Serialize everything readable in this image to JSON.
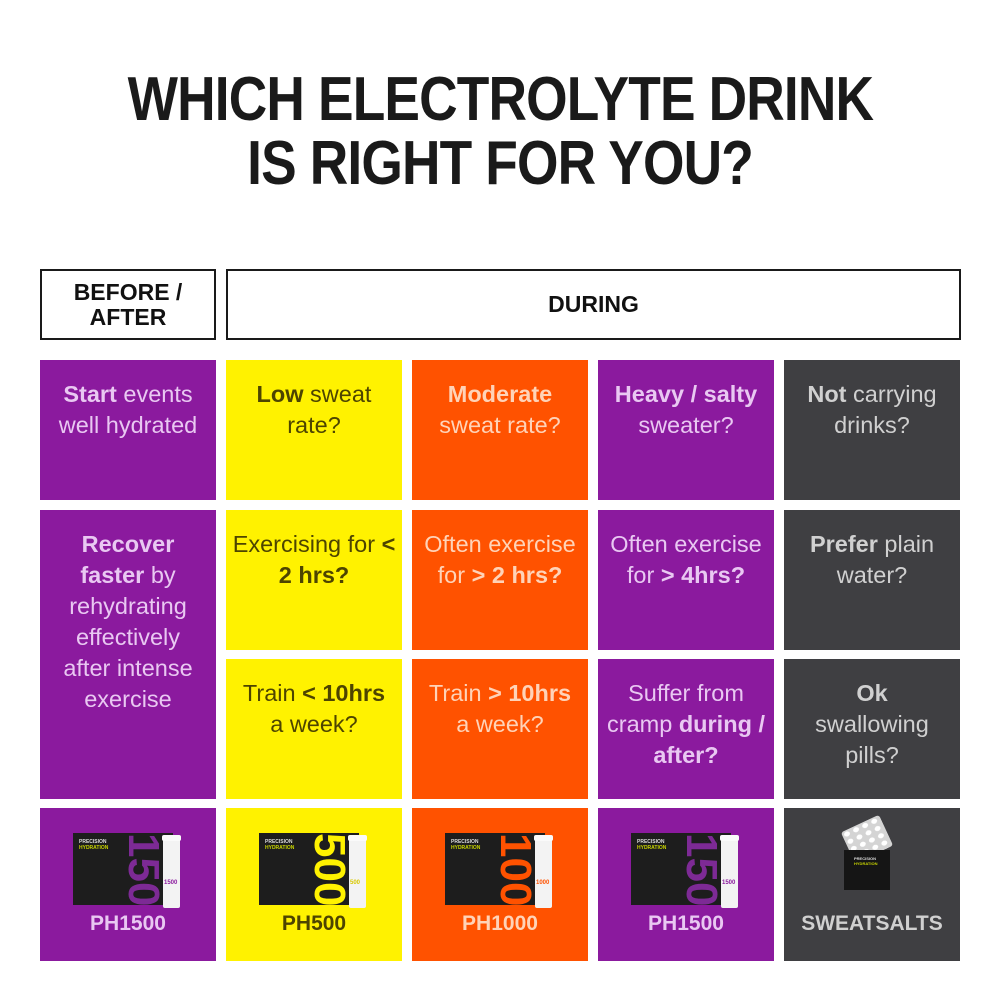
{
  "title": {
    "line1": "WHICH ELECTROLYTE DRINK",
    "line2": "IS RIGHT FOR YOU?"
  },
  "headers": {
    "before_after": "BEFORE / AFTER",
    "during": "DURING"
  },
  "colors": {
    "purple": "#8b1a9e",
    "yellow": "#fff200",
    "orange": "#ff5200",
    "gray": "#3f3f42"
  },
  "rows": {
    "sweat": [
      {
        "bold": "Start",
        "rest": " events well hydrated"
      },
      {
        "bold": "Low",
        "rest": " sweat rate?"
      },
      {
        "bold": "Moderate",
        "rest": " sweat rate?"
      },
      {
        "bold": "Heavy / salty",
        "rest": " sweater?"
      },
      {
        "bold": "Not",
        "rest": " carrying drinks?"
      }
    ],
    "duration": [
      {
        "bold": "Recover faster",
        "rest": " by rehydrating effectively after intense exercise"
      },
      {
        "pre": "Exercising for ",
        "bold": "< 2 hrs?"
      },
      {
        "pre": "Often exercise for ",
        "bold": "> 2 hrs?"
      },
      {
        "pre": "Often exercise for ",
        "bold": "> 4hrs?"
      },
      {
        "bold": "Prefer",
        "rest": " plain water?"
      }
    ],
    "volume": [
      {
        "pre": "Train ",
        "bold": "< 10hrs",
        "rest": " a week?"
      },
      {
        "pre": "Train ",
        "bold": "> 10hrs",
        "rest": " a week?"
      },
      {
        "pre": "Suffer from cramp ",
        "bold": "during / after?"
      },
      {
        "bold": "Ok",
        "rest": " swallowing pills?"
      }
    ]
  },
  "products": [
    {
      "name": "PH1500",
      "number": "1500",
      "brand": "PRECISION",
      "sub": "HYDRATION"
    },
    {
      "name": "PH500",
      "number": "500",
      "brand": "PRECISION",
      "sub": "HYDRATION"
    },
    {
      "name": "PH1000",
      "number": "1000",
      "brand": "PRECISION",
      "sub": "HYDRATION"
    },
    {
      "name": "PH1500",
      "number": "1500",
      "brand": "PRECISION",
      "sub": "HYDRATION"
    },
    {
      "name": "SWEATSALTS",
      "brand": "PRECISION",
      "sub": "HYDRATION"
    }
  ]
}
